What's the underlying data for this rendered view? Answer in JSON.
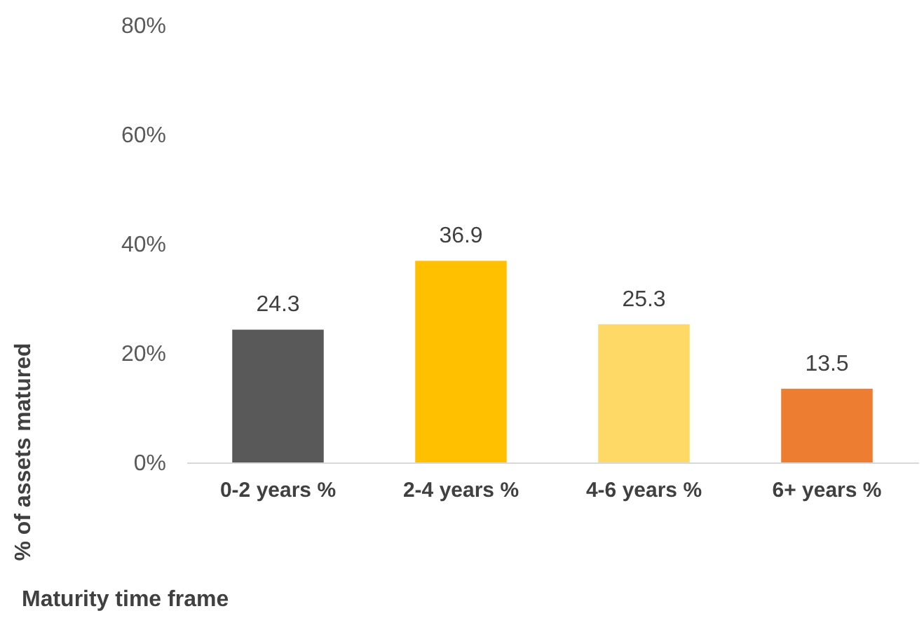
{
  "chart_data": {
    "type": "bar",
    "xlabel": "Maturity time frame",
    "ylabel": "% of assets matured",
    "categories": [
      "0-2 years %",
      "2-4 years %",
      "4-6 years %",
      "6+ years %"
    ],
    "values": [
      24.3,
      36.9,
      25.3,
      13.5
    ],
    "colors": [
      "#595959",
      "#ffc000",
      "#ffd966",
      "#ed7d31"
    ],
    "ylim": [
      0,
      80
    ],
    "yticks": [
      {
        "value": 0,
        "label": "0%"
      },
      {
        "value": 20,
        "label": "20%"
      },
      {
        "value": 40,
        "label": "40%"
      },
      {
        "value": 60,
        "label": "60%"
      },
      {
        "value": 80,
        "label": "80%"
      }
    ],
    "data_labels": true
  }
}
